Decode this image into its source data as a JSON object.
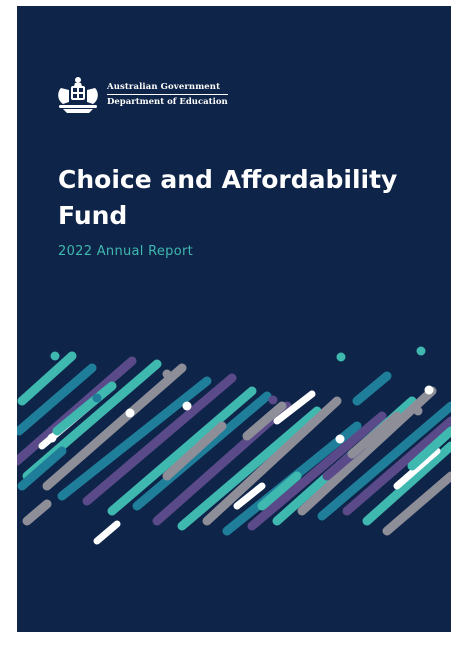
{
  "org": {
    "line1": "Australian Government",
    "line2": "Department of Education",
    "crest": "coat-of-arms-icon"
  },
  "title": "Choice and Affordability Fund",
  "subtitle": "2022 Annual Report",
  "palette": {
    "background": "#0e2448",
    "accent": "#3fb8b0",
    "stripe_colors": [
      "#3fb8b0",
      "#1f7f9a",
      "#5b4a8a",
      "#8e8e99",
      "#ffffff",
      "#58c1b8"
    ]
  }
}
